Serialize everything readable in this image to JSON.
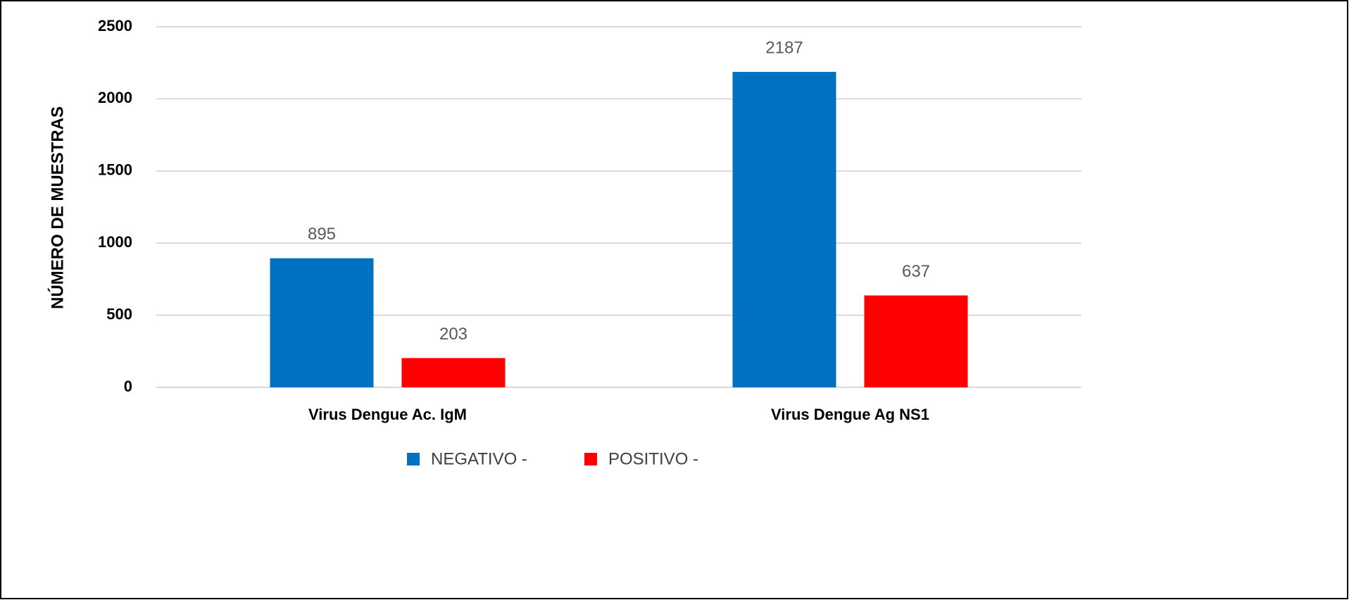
{
  "chart_data": {
    "type": "bar",
    "y_label": "NÚMERO DE MUESTRAS",
    "categories": [
      "Virus Dengue Ac. IgM",
      "Virus Dengue Ag NS1"
    ],
    "series": [
      {
        "name": "NEGATIVO -",
        "color": "#0070c0",
        "values": [
          895,
          2187
        ]
      },
      {
        "name": "POSITIVO -",
        "color": "#ff0000",
        "values": [
          203,
          637
        ]
      }
    ],
    "ylim": [
      0,
      2500
    ],
    "yticks": [
      0,
      500,
      1000,
      1500,
      2000,
      2500
    ],
    "grid": true,
    "legend": "bottom"
  }
}
